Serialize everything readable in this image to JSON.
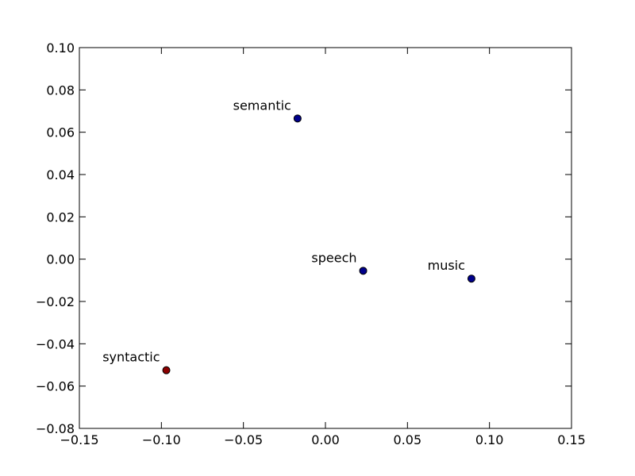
{
  "chart_data": {
    "type": "scatter",
    "title": "",
    "xlabel": "",
    "ylabel": "",
    "xlim": [
      -0.15,
      0.15
    ],
    "ylim": [
      -0.08,
      0.1
    ],
    "x_ticks": [
      -0.15,
      -0.1,
      -0.05,
      0.0,
      0.05,
      0.1,
      0.15
    ],
    "x_tick_labels": [
      "−0.15",
      "−0.10",
      "−0.05",
      "0.00",
      "0.05",
      "0.10",
      "0.15"
    ],
    "y_ticks": [
      -0.08,
      -0.06,
      -0.04,
      -0.02,
      0.0,
      0.02,
      0.04,
      0.06,
      0.08,
      0.1
    ],
    "y_tick_labels": [
      "−0.08",
      "−0.06",
      "−0.04",
      "−0.02",
      "0.00",
      "0.02",
      "0.04",
      "0.06",
      "0.08",
      "0.10"
    ],
    "grid": false,
    "points": [
      {
        "label": "semantic",
        "x": -0.017,
        "y": 0.0665,
        "color": "#00008b"
      },
      {
        "label": "speech",
        "x": 0.023,
        "y": -0.0055,
        "color": "#00008b"
      },
      {
        "label": "music",
        "x": 0.089,
        "y": -0.0092,
        "color": "#00008b"
      },
      {
        "label": "syntactic",
        "x": -0.097,
        "y": -0.0525,
        "color": "#8b0000"
      }
    ]
  }
}
